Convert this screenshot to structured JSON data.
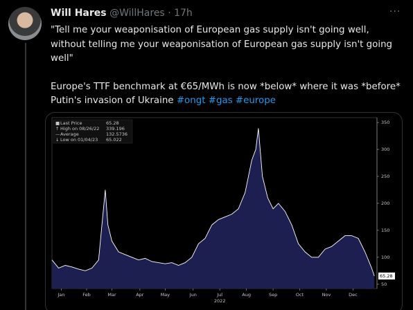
{
  "tweet": {
    "name": "Will Hares",
    "handle": "@WillHares",
    "separator": "·",
    "time": "17h",
    "paragraphs": [
      {
        "lines": [
          "\"Tell me your weaponisation of European gas supply isn't going well,",
          "without telling me your weaponisation of European gas supply isn't going",
          "well\""
        ]
      },
      {
        "lines": [
          "Europe's TTF benchmark at €65/MWh is now *below* where it was *before*",
          "Putin's invasion of Ukraine"
        ]
      }
    ],
    "hashtags": [
      "#ongt",
      "#gas",
      "#europe"
    ]
  },
  "chart_data": {
    "type": "area",
    "legend": [
      {
        "label": "Last Price",
        "value": 65.28
      },
      {
        "label": "High on 08/26/22",
        "value": 339.196
      },
      {
        "label": "Average",
        "value": 132.5736
      },
      {
        "label": "Low on 01/04/23",
        "value": 65.022
      }
    ],
    "x": [
      0,
      0.25,
      0.5,
      0.75,
      1,
      1.25,
      1.5,
      1.75,
      2.0,
      2.1,
      2.25,
      2.5,
      2.75,
      3,
      3.25,
      3.5,
      3.75,
      4,
      4.25,
      4.5,
      4.75,
      5,
      5.25,
      5.5,
      5.75,
      6,
      6.25,
      6.5,
      6.75,
      7,
      7.25,
      7.5,
      7.65,
      7.75,
      7.9,
      8.1,
      8.3,
      8.5,
      8.75,
      9,
      9.25,
      9.5,
      9.75,
      10,
      10.25,
      10.5,
      10.75,
      11,
      11.25,
      11.5,
      11.75,
      12,
      12.1
    ],
    "values": [
      95,
      80,
      85,
      82,
      78,
      75,
      80,
      95,
      225,
      160,
      130,
      110,
      105,
      100,
      95,
      98,
      92,
      90,
      88,
      90,
      85,
      90,
      100,
      125,
      135,
      160,
      170,
      175,
      180,
      190,
      220,
      280,
      300,
      339.196,
      250,
      210,
      190,
      200,
      185,
      160,
      125,
      110,
      100,
      100,
      115,
      120,
      130,
      140,
      140,
      135,
      110,
      80,
      65.28
    ],
    "color": "#1c1f4f",
    "line_color": "#ffffff",
    "xlim": [
      0,
      12.2
    ],
    "xticks": [
      {
        "value": 0.35,
        "label": "Jan"
      },
      {
        "value": 1.3,
        "label": "Feb"
      },
      {
        "value": 2.25,
        "label": "Mar"
      },
      {
        "value": 3.3,
        "label": "Apr"
      },
      {
        "value": 4.25,
        "label": "May"
      },
      {
        "value": 5.3,
        "label": "Jun"
      },
      {
        "value": 6.3,
        "label": "Jul"
      },
      {
        "value": 7.3,
        "label": "Aug"
      },
      {
        "value": 8.3,
        "label": "Sep"
      },
      {
        "value": 9.3,
        "label": "Oct"
      },
      {
        "value": 10.3,
        "label": "Nov"
      },
      {
        "value": 11.3,
        "label": "Dec"
      }
    ],
    "year_label": "2022",
    "ylim": [
      42,
      359
    ],
    "yticks": [
      50,
      100,
      150,
      200,
      250,
      300,
      350
    ]
  }
}
